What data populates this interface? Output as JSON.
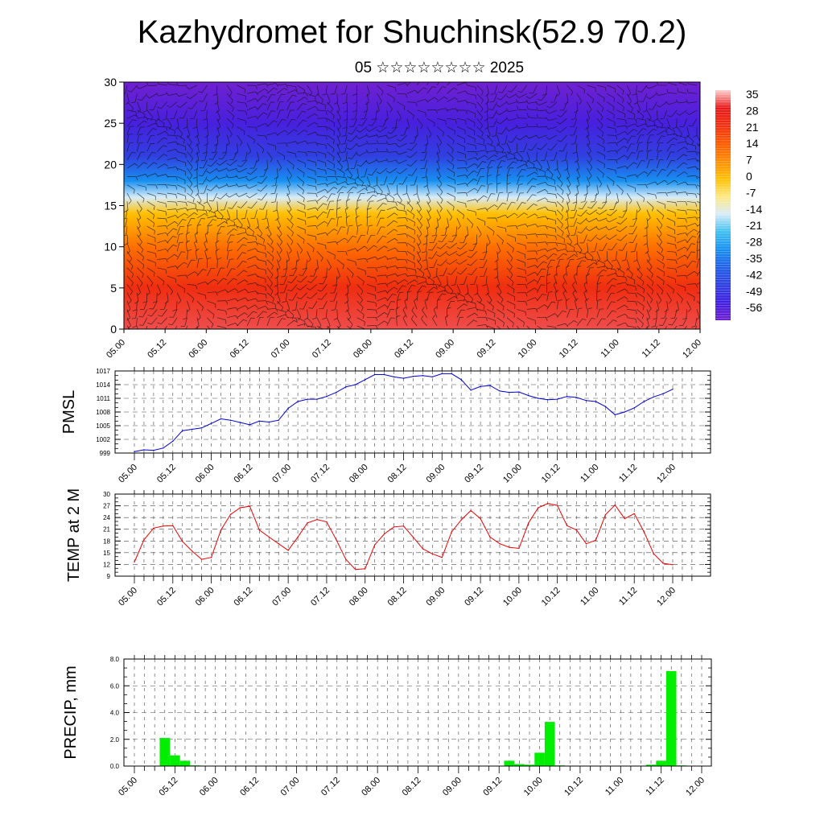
{
  "title": "Kazhydromet for Shuchinsk(52.9 70.2)",
  "subtitle": "05 ☆☆☆☆☆☆☆☆ 2025",
  "time_ticks": [
    "05.00",
    "05.12",
    "06.00",
    "06.12",
    "07.00",
    "07.12",
    "08.00",
    "08.12",
    "09.00",
    "09.12",
    "10.00",
    "10.12",
    "11.00",
    "11.12",
    "12.00"
  ],
  "chart_data": [
    {
      "type": "heatmap",
      "title": "",
      "xlabel": "",
      "ylabel": "",
      "ylim": [
        0,
        30
      ],
      "yticks": [
        0,
        5,
        10,
        15,
        20,
        25,
        30
      ],
      "colorbar": {
        "labels": [
          "35",
          "28",
          "21",
          "14",
          "7",
          "0",
          "-7",
          "-14",
          "-21",
          "-28",
          "-35",
          "-42",
          "-49",
          "-56"
        ],
        "colors": [
          "#ffd0d0",
          "#e81818",
          "#f03010",
          "#ff5a00",
          "#ff8c00",
          "#ffc000",
          "#ffe880",
          "#d8ecf8",
          "#40c0f0",
          "#1890f0",
          "#2060e8",
          "#3040e0",
          "#4020e0",
          "#7020d0"
        ]
      },
      "temperature_profile": [
        {
          "height": 0,
          "value": 30
        },
        {
          "height": 5,
          "value": 22
        },
        {
          "height": 10,
          "value": 11
        },
        {
          "height": 14,
          "value": 0
        },
        {
          "height": 16,
          "value": -14
        },
        {
          "height": 18,
          "value": -28
        },
        {
          "height": 21,
          "value": -42
        },
        {
          "height": 25,
          "value": -50
        },
        {
          "height": 30,
          "value": -58
        }
      ]
    },
    {
      "type": "line",
      "ylabel": "PMSL",
      "ylim": [
        999,
        1017
      ],
      "yticks": [
        999,
        1002,
        1005,
        1008,
        1011,
        1014,
        1017
      ],
      "color": "#0000cc",
      "x": [
        0,
        3,
        6,
        9,
        12,
        15,
        18,
        21,
        24,
        27,
        30,
        33,
        36,
        39,
        42,
        45,
        48,
        51,
        54,
        57,
        60,
        63,
        66,
        69,
        72,
        75,
        78,
        81,
        84,
        87,
        90,
        93,
        96,
        99,
        102,
        105,
        108,
        111,
        114,
        117,
        120,
        123,
        126,
        129,
        132,
        135,
        138,
        141,
        144,
        147,
        150,
        153,
        156,
        159,
        162,
        165,
        168
      ],
      "values": [
        999.3,
        999.7,
        999.6,
        1000.1,
        1001.6,
        1003.9,
        1004.2,
        1004.5,
        1005.5,
        1006.5,
        1006.2,
        1005.7,
        1005.2,
        1006.0,
        1005.8,
        1006.2,
        1008.8,
        1010.3,
        1010.8,
        1010.8,
        1011.4,
        1012.3,
        1013.5,
        1014.0,
        1015.1,
        1016.2,
        1016.2,
        1015.7,
        1015.4,
        1015.8,
        1016.0,
        1015.7,
        1016.4,
        1016.4,
        1015.1,
        1012.8,
        1013.6,
        1013.8,
        1012.6,
        1012.3,
        1012.4,
        1011.6,
        1011.0,
        1010.7,
        1010.8,
        1011.4,
        1011.2,
        1010.5,
        1010.3,
        1009.2,
        1007.4,
        1008.0,
        1008.9,
        1010.3,
        1011.3,
        1012.0,
        1013.0
      ]
    },
    {
      "type": "line",
      "ylabel": "TEMP at 2 M",
      "ylim": [
        9,
        30
      ],
      "yticks": [
        9,
        12,
        15,
        18,
        21,
        24,
        27,
        30
      ],
      "color": "#ee0000",
      "x": [
        0,
        3,
        6,
        9,
        12,
        15,
        18,
        21,
        24,
        27,
        30,
        33,
        36,
        39,
        42,
        45,
        48,
        51,
        54,
        57,
        60,
        63,
        66,
        69,
        72,
        75,
        78,
        81,
        84,
        87,
        90,
        93,
        96,
        99,
        102,
        105,
        108,
        111,
        114,
        117,
        120,
        123,
        126,
        129,
        132,
        135,
        138,
        141,
        144,
        147,
        150,
        153,
        156,
        159,
        162,
        165,
        168
      ],
      "values": [
        12.6,
        18.3,
        21.3,
        21.8,
        21.9,
        17.9,
        15.4,
        13.3,
        13.8,
        20.8,
        24.8,
        26.5,
        26.9,
        20.8,
        19.0,
        17.3,
        15.6,
        19.0,
        22.6,
        23.5,
        22.9,
        18.3,
        13.3,
        10.7,
        10.9,
        17.0,
        19.8,
        21.6,
        21.8,
        19.0,
        16.0,
        14.7,
        13.8,
        20.3,
        23.4,
        25.8,
        23.7,
        19.0,
        17.3,
        16.4,
        16.1,
        22.6,
        26.5,
        27.6,
        27.1,
        21.9,
        20.8,
        17.3,
        18.2,
        24.7,
        27.2,
        23.7,
        25.0,
        20.4,
        14.8,
        12.3,
        11.9
      ]
    },
    {
      "type": "bar",
      "ylabel": "PRECIP, mm",
      "ylim": [
        0,
        8
      ],
      "yticks": [
        "0.0",
        "2.0",
        "4.0",
        "6.0",
        "8.0"
      ],
      "color": "#00ee00",
      "x": [
        9,
        12,
        15,
        18,
        36,
        111,
        114,
        117,
        120,
        123,
        126,
        153,
        156,
        159,
        162
      ],
      "values": [
        2.1,
        0.8,
        0.4,
        0.05,
        0.03,
        0.4,
        0.15,
        0.1,
        1.0,
        3.3,
        0.05,
        0.1,
        0.4,
        7.1,
        0.05
      ]
    }
  ]
}
